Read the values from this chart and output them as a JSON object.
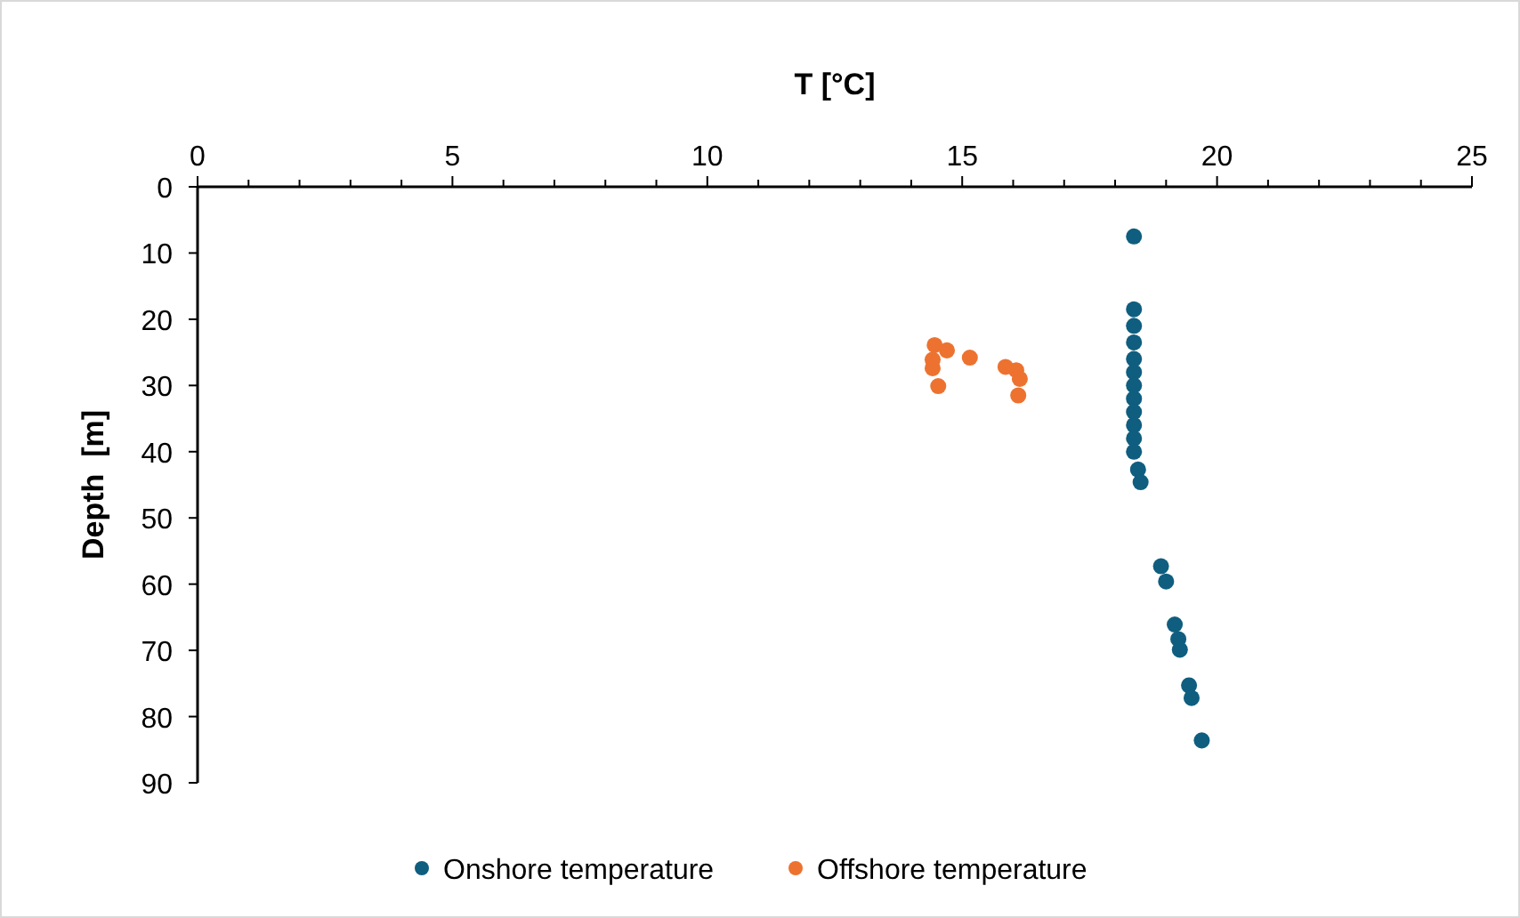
{
  "chart_data": {
    "type": "scatter",
    "xlabel": "T [°C]",
    "ylabel": "Depth  [m]",
    "xlim": [
      0,
      25
    ],
    "xticks": [
      0,
      {
        "value": 1,
        "label": null
      },
      {
        "value": 2,
        "label": null
      },
      {
        "value": 3,
        "label": null
      },
      {
        "value": 4,
        "label": null
      },
      5,
      {
        "value": 6,
        "label": null
      },
      {
        "value": 7,
        "label": null
      },
      {
        "value": 8,
        "label": null
      },
      {
        "value": 9,
        "label": null
      },
      10,
      {
        "value": 11,
        "label": null
      },
      {
        "value": 12,
        "label": null
      },
      {
        "value": 13,
        "label": null
      },
      {
        "value": 14,
        "label": null
      },
      15,
      {
        "value": 16,
        "label": null
      },
      {
        "value": 17,
        "label": null
      },
      {
        "value": 18,
        "label": null
      },
      {
        "value": 19,
        "label": null
      },
      20,
      {
        "value": 21,
        "label": null
      },
      {
        "value": 22,
        "label": null
      },
      {
        "value": 23,
        "label": null
      },
      {
        "value": 24,
        "label": null
      },
      25
    ],
    "ylim": [
      90,
      0
    ],
    "yticks": [
      0,
      10,
      20,
      30,
      40,
      50,
      60,
      70,
      80,
      90
    ],
    "grid": false,
    "legend": "bottom",
    "marker": "circle",
    "series": [
      {
        "name": "Onshore temperature",
        "color": "#0f5e7f",
        "x": [
          18.37,
          18.37,
          18.37,
          18.37,
          18.37,
          18.37,
          18.37,
          18.37,
          18.37,
          18.37,
          18.37,
          18.37,
          18.45,
          18.5,
          18.9,
          19.0,
          19.17,
          19.24,
          19.27,
          19.45,
          19.5,
          19.7
        ],
        "values": [
          7.5,
          18.5,
          21,
          23.5,
          26,
          28,
          30,
          32,
          34,
          36,
          38,
          40,
          42.7,
          44.6,
          57.3,
          59.6,
          66.1,
          68.3,
          69.9,
          75.3,
          77.2,
          83.6
        ]
      },
      {
        "name": "Offshore temperature",
        "color": "#ed7230",
        "x": [
          14.46,
          14.7,
          14.42,
          14.42,
          14.53,
          15.15,
          15.85,
          16.06,
          16.13,
          16.1
        ],
        "values": [
          23.9,
          24.7,
          26.1,
          27.4,
          30.1,
          25.8,
          27.2,
          27.7,
          29.0,
          31.5
        ]
      }
    ]
  }
}
